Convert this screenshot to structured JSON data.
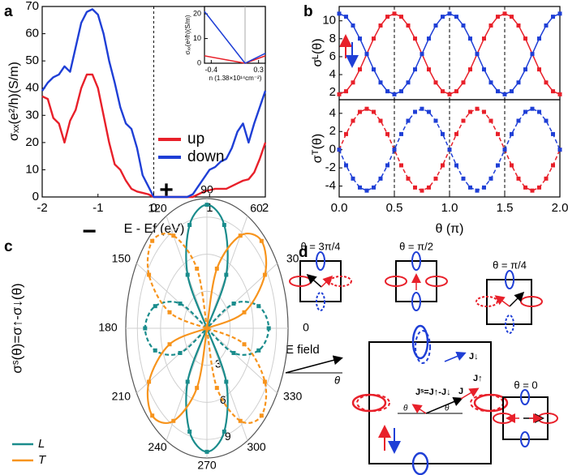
{
  "chart_data": [
    {
      "type": "line",
      "label": "a",
      "xlabel": "E - Ef (eV)",
      "ylabel": "σₓₓ(e²/h)(S/m)",
      "xlim": [
        -2,
        2
      ],
      "ylim": [
        0,
        70
      ],
      "xticks": [
        -2,
        -1,
        0,
        1,
        2
      ],
      "yticks": [
        0,
        10,
        20,
        30,
        40,
        50,
        60,
        70
      ],
      "vlines": [
        0
      ],
      "legend": "center right",
      "x": [
        -2,
        -1.9,
        -1.8,
        -1.7,
        -1.6,
        -1.5,
        -1.4,
        -1.3,
        -1.2,
        -1.1,
        -1,
        -0.9,
        -0.8,
        -0.7,
        -0.6,
        -0.5,
        -0.4,
        -0.3,
        -0.2,
        -0.1,
        0,
        0.1,
        0.2,
        0.3,
        0.4,
        0.5,
        0.6,
        0.7,
        0.8,
        0.9,
        1,
        1.1,
        1.2,
        1.3,
        1.4,
        1.5,
        1.6,
        1.7,
        1.8,
        1.9,
        2
      ],
      "series": [
        {
          "name": "up",
          "color": "#e8202a",
          "values": [
            37,
            36,
            29,
            27,
            20,
            28,
            32,
            40,
            45,
            45,
            40,
            30,
            20,
            12,
            10,
            6,
            3,
            2,
            1.5,
            1,
            0,
            0,
            0,
            0,
            0,
            0,
            0,
            0,
            1,
            2,
            2.5,
            3,
            3,
            3,
            4,
            5,
            6,
            6.5,
            9,
            14,
            20
          ]
        },
        {
          "name": "down",
          "color": "#1f3fd6",
          "values": [
            39,
            42,
            44,
            45,
            48,
            46,
            55,
            64,
            68,
            69,
            67,
            60,
            50,
            42,
            33,
            27,
            25,
            18,
            8,
            4,
            0,
            0,
            0,
            0,
            0,
            0,
            0,
            1,
            4,
            7,
            10,
            11,
            13,
            14,
            18,
            24,
            27,
            20,
            27,
            33,
            39
          ]
        }
      ]
    },
    {
      "type": "line",
      "xlabel": "n (1.38×10¹⁴cm⁻²)",
      "ylabel": "σₓₓ(e²/h)(S/m)",
      "xlim": [
        -0.5,
        0.4
      ],
      "ylim": [
        0,
        23
      ],
      "xticks": [
        -0.4,
        0.3
      ],
      "yticks": [
        0,
        10,
        20
      ],
      "vlines": [
        0.1
      ],
      "x": [
        -0.5,
        0.1,
        0.4
      ],
      "series": [
        {
          "name": "up",
          "color": "#e8202a",
          "values": [
            3,
            0,
            3
          ]
        },
        {
          "name": "down",
          "color": "#1f3fd6",
          "values": [
            21,
            0,
            4
          ]
        }
      ]
    },
    {
      "type": "line",
      "label": "b",
      "ylabel": "σᴸ(θ)",
      "xlim": [
        0,
        2
      ],
      "ylim": [
        1.2,
        11.6
      ],
      "yticks": [
        2,
        4,
        6,
        8,
        10
      ],
      "vlines": [
        0.5,
        1,
        1.5
      ],
      "marker": "square",
      "x": [
        0,
        0.0625,
        0.125,
        0.1875,
        0.25,
        0.3125,
        0.375,
        0.4375,
        0.5,
        0.5625,
        0.625,
        0.6875,
        0.75,
        0.8125,
        0.875,
        0.9375,
        1,
        1.0625,
        1.125,
        1.1875,
        1.25,
        1.3125,
        1.375,
        1.4375,
        1.5,
        1.5625,
        1.625,
        1.6875,
        1.75,
        1.8125,
        1.875,
        1.9375,
        2
      ],
      "series": [
        {
          "name": "up",
          "color": "#e8202a",
          "values": [
            1.8,
            2.14,
            3.12,
            4.58,
            6.3,
            8.02,
            9.48,
            10.46,
            10.8,
            10.46,
            9.48,
            8.02,
            6.3,
            4.58,
            3.12,
            2.14,
            1.8,
            2.14,
            3.12,
            4.58,
            6.3,
            8.02,
            9.48,
            10.46,
            10.8,
            10.46,
            9.48,
            8.02,
            6.3,
            4.58,
            3.12,
            2.14,
            1.8
          ]
        },
        {
          "name": "down",
          "color": "#1f3fd6",
          "values": [
            10.8,
            10.46,
            9.48,
            8.02,
            6.3,
            4.58,
            3.12,
            2.14,
            1.8,
            2.14,
            3.12,
            4.58,
            6.3,
            8.02,
            9.48,
            10.46,
            10.8,
            10.46,
            9.48,
            8.02,
            6.3,
            4.58,
            3.12,
            2.14,
            1.8,
            2.14,
            3.12,
            4.58,
            6.3,
            8.02,
            9.48,
            10.46,
            10.8
          ]
        }
      ]
    },
    {
      "type": "line",
      "xlabel": "θ (π)",
      "ylabel": "σᵀ(θ)",
      "xlim": [
        0,
        2
      ],
      "ylim": [
        -5.2,
        5.5
      ],
      "xticks": [
        {
          "value": 0,
          "label": "0.0"
        },
        0.5,
        {
          "value": 1,
          "label": "1.0"
        },
        1.5,
        {
          "value": 2,
          "label": "2.0"
        }
      ],
      "yticks": [
        -4,
        -2,
        0,
        2,
        4
      ],
      "vlines": [
        0.5,
        1,
        1.5
      ],
      "marker": "square",
      "x": [
        0,
        0.0625,
        0.125,
        0.1875,
        0.25,
        0.3125,
        0.375,
        0.4375,
        0.5,
        0.5625,
        0.625,
        0.6875,
        0.75,
        0.8125,
        0.875,
        0.9375,
        1,
        1.0625,
        1.125,
        1.1875,
        1.25,
        1.3125,
        1.375,
        1.4375,
        1.5,
        1.5625,
        1.625,
        1.6875,
        1.75,
        1.8125,
        1.875,
        1.9375,
        2
      ],
      "series": [
        {
          "name": "up",
          "color": "#e8202a",
          "dashed": true,
          "values": [
            0,
            1.72,
            3.18,
            4.16,
            4.5,
            4.16,
            3.18,
            1.72,
            0,
            -1.72,
            -3.18,
            -4.16,
            -4.5,
            -4.16,
            -3.18,
            -1.72,
            0,
            1.72,
            3.18,
            4.16,
            4.5,
            4.16,
            3.18,
            1.72,
            0,
            -1.72,
            -3.18,
            -4.16,
            -4.5,
            -4.16,
            -3.18,
            -1.72,
            0
          ]
        },
        {
          "name": "down",
          "color": "#1f3fd6",
          "dashed": true,
          "values": [
            0,
            -1.72,
            -3.18,
            -4.16,
            -4.5,
            -4.16,
            -3.18,
            -1.72,
            0,
            1.72,
            3.18,
            4.16,
            4.5,
            4.16,
            3.18,
            1.72,
            0,
            -1.72,
            -3.18,
            -4.16,
            -4.5,
            -4.16,
            -3.18,
            -1.72,
            0,
            1.72,
            3.18,
            4.16,
            4.5,
            4.16,
            3.18,
            1.72,
            0
          ]
        }
      ]
    },
    {
      "type": "polar",
      "label": "c",
      "ylabel": "σˢ(θ)=σ↑-σ↓(θ)",
      "rlim": [
        0,
        10.5
      ],
      "rticks": [
        3,
        6,
        9
      ],
      "angleticks": [
        0,
        30,
        60,
        90,
        120,
        150,
        180,
        210,
        240,
        270,
        300,
        330
      ],
      "legend": "lower left",
      "marker": "square",
      "annotations": [
        "+",
        "−"
      ],
      "theta": [
        0,
        15,
        30,
        45,
        60,
        75,
        90,
        105,
        120,
        135,
        150,
        165,
        180,
        195,
        210,
        225,
        240,
        255,
        270,
        285,
        300,
        315,
        330,
        345
      ],
      "series": [
        {
          "name": "L",
          "color": "#1a8c8c",
          "values": [
            -8,
            -6.93,
            -4,
            0,
            5,
            8.66,
            10,
            8.66,
            5,
            0,
            -4,
            -6.93,
            -8,
            -6.93,
            -4,
            0,
            5,
            8.66,
            10,
            8.66,
            5,
            0,
            -4,
            -6.93
          ]
        },
        {
          "name": "T",
          "color": "#f7941d",
          "values": [
            0,
            5,
            8.66,
            10,
            8.66,
            5,
            0,
            -5,
            -8.66,
            -10,
            -8.66,
            -5,
            0,
            5,
            8.66,
            10,
            8.66,
            5,
            0,
            -5,
            -8.66,
            -10,
            -8.66,
            -5
          ]
        }
      ]
    }
  ],
  "diagram": {
    "label": "d",
    "states": [
      "θ = 3π/4",
      "θ = π/2",
      "θ = π/4",
      "θ = 0"
    ],
    "field": "E field",
    "angle": "θ",
    "current_total": "Jˢ=J↑-J↓",
    "current_down": "J↓",
    "current_up": "J↑",
    "current": "J"
  }
}
